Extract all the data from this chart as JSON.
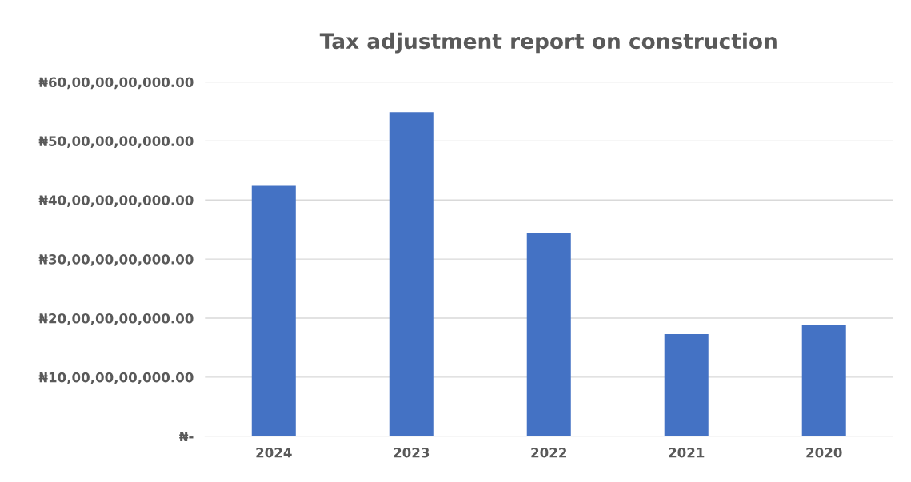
{
  "chart_data": {
    "type": "bar",
    "title": "Tax adjustment report on construction",
    "categories": [
      "2024",
      "2023",
      "2022",
      "2021",
      "2020"
    ],
    "values": [
      42400000000,
      54900000000,
      34400000000,
      17300000000,
      18800000000
    ],
    "color": "#4472c4",
    "ylim": [
      0,
      60000000000
    ],
    "yticks": [
      {
        "value": 0,
        "label": "₦-"
      },
      {
        "value": 10000000000,
        "label": "₦10,00,00,00,000.00"
      },
      {
        "value": 20000000000,
        "label": "₦20,00,00,00,000.00"
      },
      {
        "value": 30000000000,
        "label": "₦30,00,00,00,000.00"
      },
      {
        "value": 40000000000,
        "label": "₦40,00,00,00,000.00"
      },
      {
        "value": 50000000000,
        "label": "₦50,00,00,00,000.00"
      },
      {
        "value": 60000000000,
        "label": "₦60,00,00,00,000.00"
      }
    ],
    "grid": "y",
    "legend": false
  }
}
